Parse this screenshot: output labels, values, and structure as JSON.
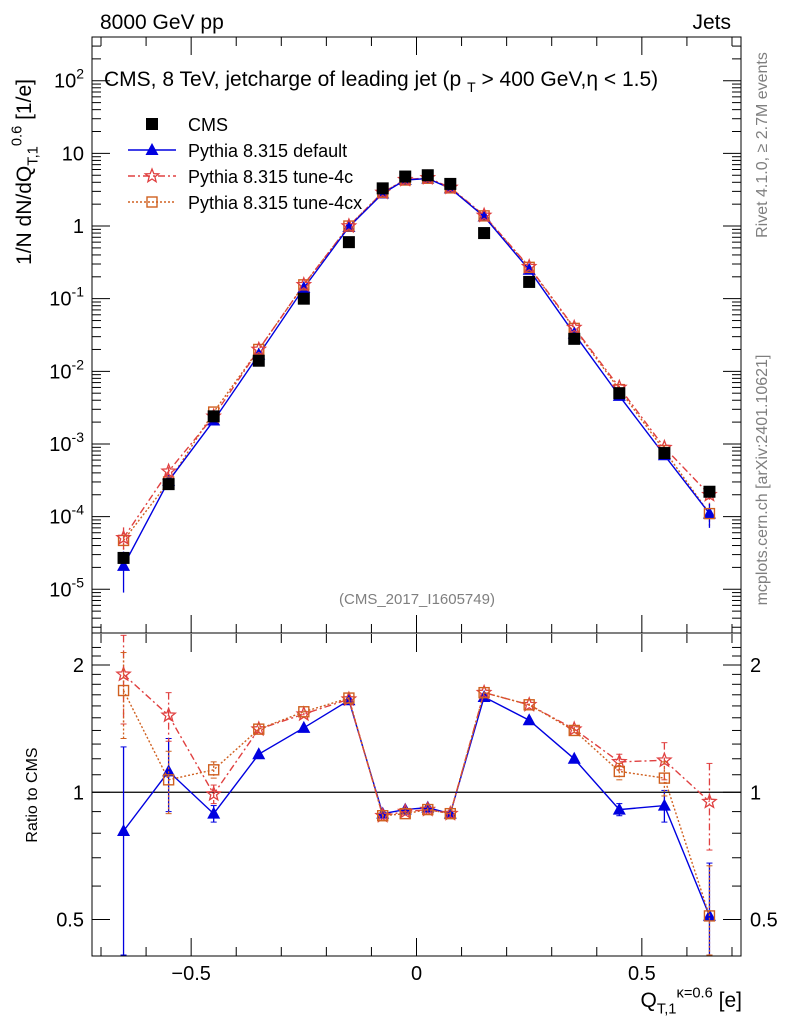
{
  "header": {
    "energy_label": "8000 GeV pp",
    "process_label": "Jets",
    "plot_title": "CMS, 8 TeV, jetcharge of leading jet (p_T > 400 GeV,η < 1.5)",
    "analysis_id": "(CMS_2017_I1605749)",
    "rivet_label": "Rivet 4.1.0, ≥ 2.7M events",
    "source_label": "mcplots.cern.ch [arXiv:2401.10621]"
  },
  "colors": {
    "cms": "#000000",
    "default": "#0000e0",
    "tune4c": "#e04040",
    "tune4cx": "#d06020"
  },
  "chart_data": [
    {
      "type": "scatter",
      "panel": "main",
      "ylabel": "1/N dN/dQ_{T,1}^{0.6} [1/e]",
      "yscale": "log",
      "xlim": [
        -0.72,
        0.72
      ],
      "ylim": [
        2.5e-06,
        400
      ],
      "y_ticks": [
        "10^{-5}",
        "10^{-4}",
        "10^{-3}",
        "10^{-2}",
        "10^{-1}",
        "1",
        "10",
        "10^{2}"
      ],
      "x": [
        -0.65,
        -0.55,
        -0.45,
        -0.35,
        -0.25,
        -0.15,
        -0.075,
        -0.025,
        0.025,
        0.075,
        0.15,
        0.25,
        0.35,
        0.45,
        0.55,
        0.65
      ],
      "series": [
        {
          "name": "CMS",
          "marker": "square",
          "values": [
            2.7e-05,
            0.00028,
            0.0024,
            0.014,
            0.1,
            0.6,
            3.3,
            4.8,
            5.0,
            3.8,
            0.8,
            0.17,
            0.028,
            0.005,
            0.00075,
            0.00022
          ]
        },
        {
          "name": "Pythia 8.315 default",
          "marker": "triangle",
          "values": [
            2.1e-05,
            0.00031,
            0.0021,
            0.017,
            0.14,
            0.97,
            2.8,
            4.3,
            4.5,
            3.3,
            1.35,
            0.25,
            0.033,
            0.0046,
            0.0007,
            0.00011
          ],
          "errors": [
            1.2e-05,
            5e-05,
            0.0002,
            0.001,
            0.005,
            0.02,
            0.05,
            0.05,
            0.05,
            0.05,
            0.02,
            0.006,
            0.001,
            0.0002,
            6e-05,
            4e-05
          ]
        },
        {
          "name": "Pythia 8.315 tune-4c",
          "marker": "star",
          "values": [
            5.1e-05,
            0.00042,
            0.0024,
            0.02,
            0.155,
            1.0,
            2.9,
            4.35,
            4.6,
            3.4,
            1.4,
            0.275,
            0.04,
            0.006,
            0.00089,
            0.0002
          ],
          "errors": [
            2e-05,
            6e-05,
            0.0003,
            0.001,
            0.005,
            0.02,
            0.05,
            0.05,
            0.05,
            0.05,
            0.02,
            0.006,
            0.001,
            0.0003,
            8e-05,
            5e-05
          ]
        },
        {
          "name": "Pythia 8.315 tune-4cx",
          "marker": "open-square",
          "values": [
            4.7e-05,
            0.0003,
            0.00275,
            0.02,
            0.155,
            1.0,
            2.9,
            4.3,
            4.55,
            3.35,
            1.38,
            0.27,
            0.039,
            0.0056,
            0.00081,
            0.00011
          ],
          "errors": [
            1.5e-05,
            5e-05,
            0.0003,
            0.001,
            0.005,
            0.02,
            0.05,
            0.05,
            0.05,
            0.05,
            0.02,
            0.006,
            0.001,
            0.0003,
            7e-05,
            4e-05
          ]
        }
      ]
    },
    {
      "type": "line",
      "panel": "ratio",
      "ylabel": "Ratio to CMS",
      "xlabel": "Q_{T,1}^{κ=0.6} [e]",
      "yscale": "log",
      "xlim": [
        -0.72,
        0.72
      ],
      "ylim": [
        0.41,
        2.38
      ],
      "x_ticks": [
        "−0.5",
        "0",
        "0.5"
      ],
      "y_ticks": [
        "0.5",
        "1",
        "2"
      ],
      "reference": 1,
      "x": [
        -0.65,
        -0.55,
        -0.45,
        -0.35,
        -0.25,
        -0.15,
        -0.075,
        -0.025,
        0.025,
        0.075,
        0.15,
        0.25,
        0.35,
        0.45,
        0.55,
        0.65
      ],
      "series": [
        {
          "name": "Pythia 8.315 default",
          "values": [
            0.81,
            1.12,
            0.89,
            1.23,
            1.42,
            1.65,
            0.89,
            0.91,
            0.92,
            0.89,
            1.68,
            1.48,
            1.2,
            0.91,
            0.93,
            0.51
          ],
          "errors": [
            0.47,
            0.22,
            0.04,
            0.01,
            0.01,
            0.01,
            0.01,
            0.01,
            0.01,
            0.01,
            0.01,
            0.01,
            0.01,
            0.03,
            0.08,
            0.17
          ]
        },
        {
          "name": "Pythia 8.315 tune-4c",
          "values": [
            1.9,
            1.52,
            0.99,
            1.41,
            1.53,
            1.66,
            0.88,
            0.9,
            0.91,
            0.89,
            1.72,
            1.61,
            1.41,
            1.18,
            1.19,
            0.95
          ],
          "errors": [
            0.45,
            0.2,
            0.05,
            0.02,
            0.01,
            0.01,
            0.01,
            0.01,
            0.01,
            0.01,
            0.01,
            0.01,
            0.02,
            0.05,
            0.12,
            0.22
          ]
        },
        {
          "name": "Pythia 8.315 tune-4cx",
          "values": [
            1.74,
            1.07,
            1.13,
            1.41,
            1.55,
            1.67,
            0.88,
            0.89,
            0.91,
            0.89,
            1.72,
            1.61,
            1.4,
            1.12,
            1.08,
            0.51
          ],
          "errors": [
            0.4,
            0.18,
            0.05,
            0.02,
            0.01,
            0.01,
            0.01,
            0.01,
            0.01,
            0.01,
            0.01,
            0.01,
            0.02,
            0.05,
            0.1,
            0.16
          ]
        }
      ]
    }
  ]
}
